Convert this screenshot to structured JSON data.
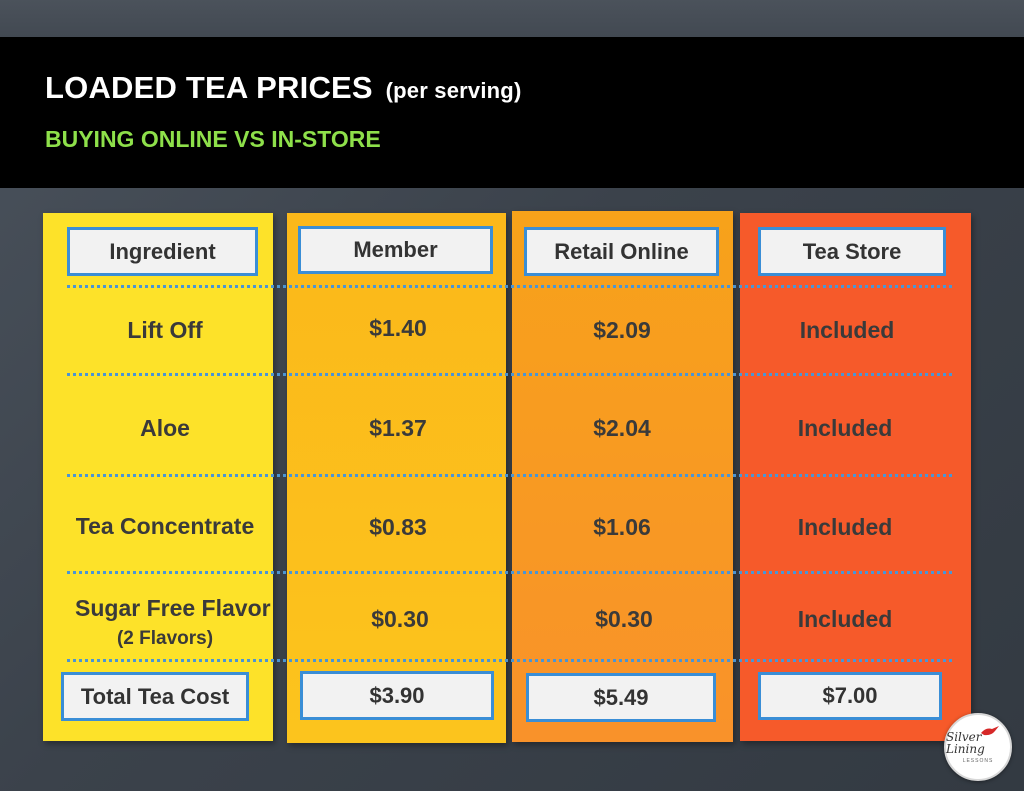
{
  "header": {
    "title": "LOADED TEA PRICES",
    "title_suffix": "(per serving)",
    "subtitle": "BUYING ONLINE VS IN-STORE"
  },
  "columns": [
    {
      "header": "Ingredient",
      "color": "#fde229"
    },
    {
      "header": "Member",
      "color": "#fcc41d"
    },
    {
      "header": "Retail Online",
      "color": "#f9922a"
    },
    {
      "header": "Tea Store",
      "color": "#f65a2a"
    }
  ],
  "rows": [
    {
      "ingredient": "Lift Off",
      "member": "$1.40",
      "retail": "$2.09",
      "store": "Included"
    },
    {
      "ingredient": "Aloe",
      "member": "$1.37",
      "retail": "$2.04",
      "store": "Included"
    },
    {
      "ingredient": "Tea Concentrate",
      "member": "$0.83",
      "retail": "$1.06",
      "store": "Included"
    },
    {
      "ingredient": "Sugar Free Flavor",
      "ingredient_note": "(2 Flavors)",
      "member": "$0.30",
      "retail": "$0.30",
      "store": "Included"
    }
  ],
  "total": {
    "label": "Total Tea Cost",
    "member": "$3.90",
    "retail": "$5.49",
    "store": "$7.00"
  },
  "logo": {
    "text": "Silver Lining",
    "subtext": "LESSONS"
  },
  "colors": {
    "header_bg": "#000000",
    "subtitle": "#8ee04a",
    "box_border": "#3a8ed6"
  }
}
